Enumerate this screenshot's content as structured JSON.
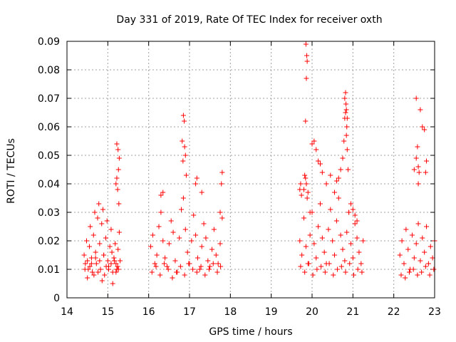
{
  "chart_data": {
    "type": "scatter",
    "title": "Day 331 of 2019, Rate Of TEC Index for receiver oxth",
    "xlabel": "GPS time / hours",
    "ylabel": "ROTI / TECUs",
    "xlim": [
      14,
      23
    ],
    "ylim": [
      0,
      0.09
    ],
    "x_ticks": [
      14,
      15,
      16,
      17,
      18,
      19,
      20,
      21,
      22,
      23
    ],
    "x_tick_labels": [
      "14",
      "15",
      "16",
      "17",
      "18",
      "19",
      "20",
      "21",
      "22",
      "23"
    ],
    "y_ticks": [
      0,
      0.01,
      0.02,
      0.03,
      0.04,
      0.05,
      0.06,
      0.07,
      0.08,
      0.09
    ],
    "y_tick_labels": [
      "0",
      "0.01",
      "0.02",
      "0.03",
      "0.04",
      "0.05",
      "0.06",
      "0.07",
      "0.08",
      "0.09"
    ],
    "grid": true,
    "marker": "+",
    "marker_color": "#ff0000",
    "series": [
      {
        "name": "ROTI",
        "x": [
          14.42,
          14.45,
          14.48,
          14.5,
          14.52,
          14.55,
          14.57,
          14.6,
          14.62,
          14.65,
          14.68,
          14.7,
          14.72,
          14.75,
          14.78,
          14.8,
          14.82,
          14.85,
          14.88,
          14.9,
          14.92,
          14.95,
          14.98,
          15.0,
          15.02,
          15.05,
          15.08,
          15.1,
          15.12,
          15.15,
          15.18,
          15.2,
          15.22,
          15.25,
          15.28,
          15.3,
          14.44,
          14.5,
          14.56,
          14.6,
          14.66,
          14.7,
          14.76,
          14.8,
          14.86,
          14.9,
          14.96,
          15.02,
          15.08,
          15.12,
          15.16,
          15.2,
          15.24,
          15.26,
          15.2,
          15.22,
          15.24,
          15.26,
          15.28,
          15.25,
          15.22,
          15.27,
          16.05,
          16.1,
          16.15,
          16.2,
          16.25,
          16.3,
          16.35,
          16.4,
          16.45,
          16.5,
          16.55,
          16.6,
          16.65,
          16.7,
          16.75,
          16.8,
          16.85,
          16.9,
          16.95,
          17.0,
          17.05,
          17.1,
          17.15,
          17.2,
          17.25,
          17.3,
          17.35,
          17.4,
          17.45,
          17.5,
          17.55,
          17.6,
          17.65,
          17.7,
          17.75,
          17.8,
          16.08,
          16.18,
          16.28,
          16.38,
          16.48,
          16.58,
          16.68,
          16.78,
          16.88,
          16.98,
          17.08,
          17.18,
          17.28,
          17.38,
          17.48,
          17.58,
          17.68,
          17.76,
          16.3,
          16.35,
          16.82,
          16.85,
          16.87,
          16.9,
          16.92,
          17.15,
          17.18,
          17.3,
          17.75,
          17.78,
          17.8,
          16.88,
          16.84,
          19.7,
          19.75,
          19.8,
          19.85,
          19.9,
          19.95,
          20.0,
          20.05,
          20.1,
          20.15,
          20.2,
          20.25,
          20.3,
          20.35,
          20.4,
          20.45,
          20.5,
          20.55,
          20.6,
          20.65,
          20.7,
          20.75,
          20.8,
          20.85,
          20.9,
          20.95,
          21.0,
          21.05,
          21.1,
          21.15,
          21.2,
          21.25,
          19.72,
          19.82,
          19.92,
          20.02,
          20.12,
          20.22,
          20.32,
          20.42,
          20.52,
          20.62,
          20.72,
          20.82,
          20.92,
          21.02,
          21.12,
          21.22,
          19.7,
          19.72,
          19.74,
          19.8,
          19.82,
          19.84,
          19.86,
          19.88,
          19.9,
          19.95,
          20.0,
          20.05,
          20.1,
          20.15,
          20.2,
          20.25,
          20.35,
          20.45,
          20.55,
          20.6,
          20.65,
          20.7,
          20.75,
          20.78,
          20.8,
          20.82,
          20.84,
          20.86,
          20.88,
          20.9,
          20.95,
          21.0,
          21.05,
          21.1,
          19.85,
          19.87,
          19.86,
          19.88,
          19.84,
          20.8,
          20.82,
          20.84,
          20.86,
          20.85,
          20.83,
          22.15,
          22.2,
          22.25,
          22.3,
          22.35,
          22.4,
          22.45,
          22.5,
          22.55,
          22.6,
          22.65,
          22.7,
          22.75,
          22.8,
          22.85,
          22.9,
          22.95,
          23.0,
          22.18,
          22.28,
          22.38,
          22.48,
          22.58,
          22.68,
          22.78,
          22.88,
          22.98,
          22.5,
          22.55,
          22.58,
          22.6,
          22.62,
          22.55,
          22.65,
          22.7,
          22.75,
          22.8,
          22.78,
          22.6
        ],
        "y": [
          0.015,
          0.012,
          0.02,
          0.013,
          0.01,
          0.018,
          0.025,
          0.014,
          0.009,
          0.022,
          0.03,
          0.016,
          0.012,
          0.028,
          0.033,
          0.019,
          0.01,
          0.026,
          0.031,
          0.015,
          0.008,
          0.021,
          0.027,
          0.013,
          0.011,
          0.018,
          0.024,
          0.016,
          0.009,
          0.014,
          0.019,
          0.012,
          0.01,
          0.017,
          0.023,
          0.013,
          0.01,
          0.007,
          0.011,
          0.012,
          0.008,
          0.014,
          0.009,
          0.013,
          0.006,
          0.015,
          0.011,
          0.01,
          0.012,
          0.005,
          0.013,
          0.009,
          0.011,
          0.01,
          0.04,
          0.042,
          0.038,
          0.045,
          0.049,
          0.052,
          0.054,
          0.033,
          0.018,
          0.022,
          0.012,
          0.015,
          0.025,
          0.03,
          0.02,
          0.014,
          0.011,
          0.019,
          0.027,
          0.023,
          0.013,
          0.009,
          0.021,
          0.031,
          0.035,
          0.024,
          0.016,
          0.012,
          0.02,
          0.029,
          0.022,
          0.014,
          0.01,
          0.018,
          0.026,
          0.021,
          0.013,
          0.011,
          0.017,
          0.024,
          0.015,
          0.012,
          0.019,
          0.028,
          0.009,
          0.011,
          0.008,
          0.012,
          0.01,
          0.007,
          0.009,
          0.011,
          0.008,
          0.012,
          0.01,
          0.009,
          0.011,
          0.008,
          0.01,
          0.012,
          0.009,
          0.011,
          0.036,
          0.037,
          0.055,
          0.064,
          0.062,
          0.05,
          0.043,
          0.04,
          0.042,
          0.037,
          0.03,
          0.04,
          0.044,
          0.053,
          0.048,
          0.02,
          0.015,
          0.028,
          0.018,
          0.012,
          0.022,
          0.03,
          0.019,
          0.014,
          0.025,
          0.033,
          0.021,
          0.016,
          0.012,
          0.024,
          0.031,
          0.02,
          0.015,
          0.027,
          0.035,
          0.022,
          0.017,
          0.013,
          0.023,
          0.03,
          0.019,
          0.014,
          0.026,
          0.021,
          0.016,
          0.012,
          0.02,
          0.011,
          0.009,
          0.012,
          0.008,
          0.01,
          0.011,
          0.009,
          0.012,
          0.008,
          0.01,
          0.011,
          0.009,
          0.012,
          0.008,
          0.01,
          0.009,
          0.038,
          0.04,
          0.036,
          0.038,
          0.043,
          0.042,
          0.04,
          0.035,
          0.037,
          0.03,
          0.054,
          0.055,
          0.052,
          0.048,
          0.047,
          0.044,
          0.04,
          0.043,
          0.037,
          0.041,
          0.042,
          0.045,
          0.049,
          0.055,
          0.063,
          0.065,
          0.057,
          0.052,
          0.045,
          0.03,
          0.033,
          0.031,
          0.029,
          0.027,
          0.089,
          0.085,
          0.077,
          0.083,
          0.062,
          0.07,
          0.072,
          0.066,
          0.063,
          0.06,
          0.068,
          0.015,
          0.02,
          0.012,
          0.024,
          0.017,
          0.01,
          0.022,
          0.014,
          0.019,
          0.026,
          0.013,
          0.021,
          0.016,
          0.025,
          0.012,
          0.018,
          0.014,
          0.02,
          0.008,
          0.007,
          0.009,
          0.01,
          0.008,
          0.009,
          0.011,
          0.008,
          0.01,
          0.045,
          0.049,
          0.053,
          0.046,
          0.044,
          0.07,
          0.066,
          0.06,
          0.059,
          0.048,
          0.044,
          0.04
        ]
      }
    ]
  }
}
